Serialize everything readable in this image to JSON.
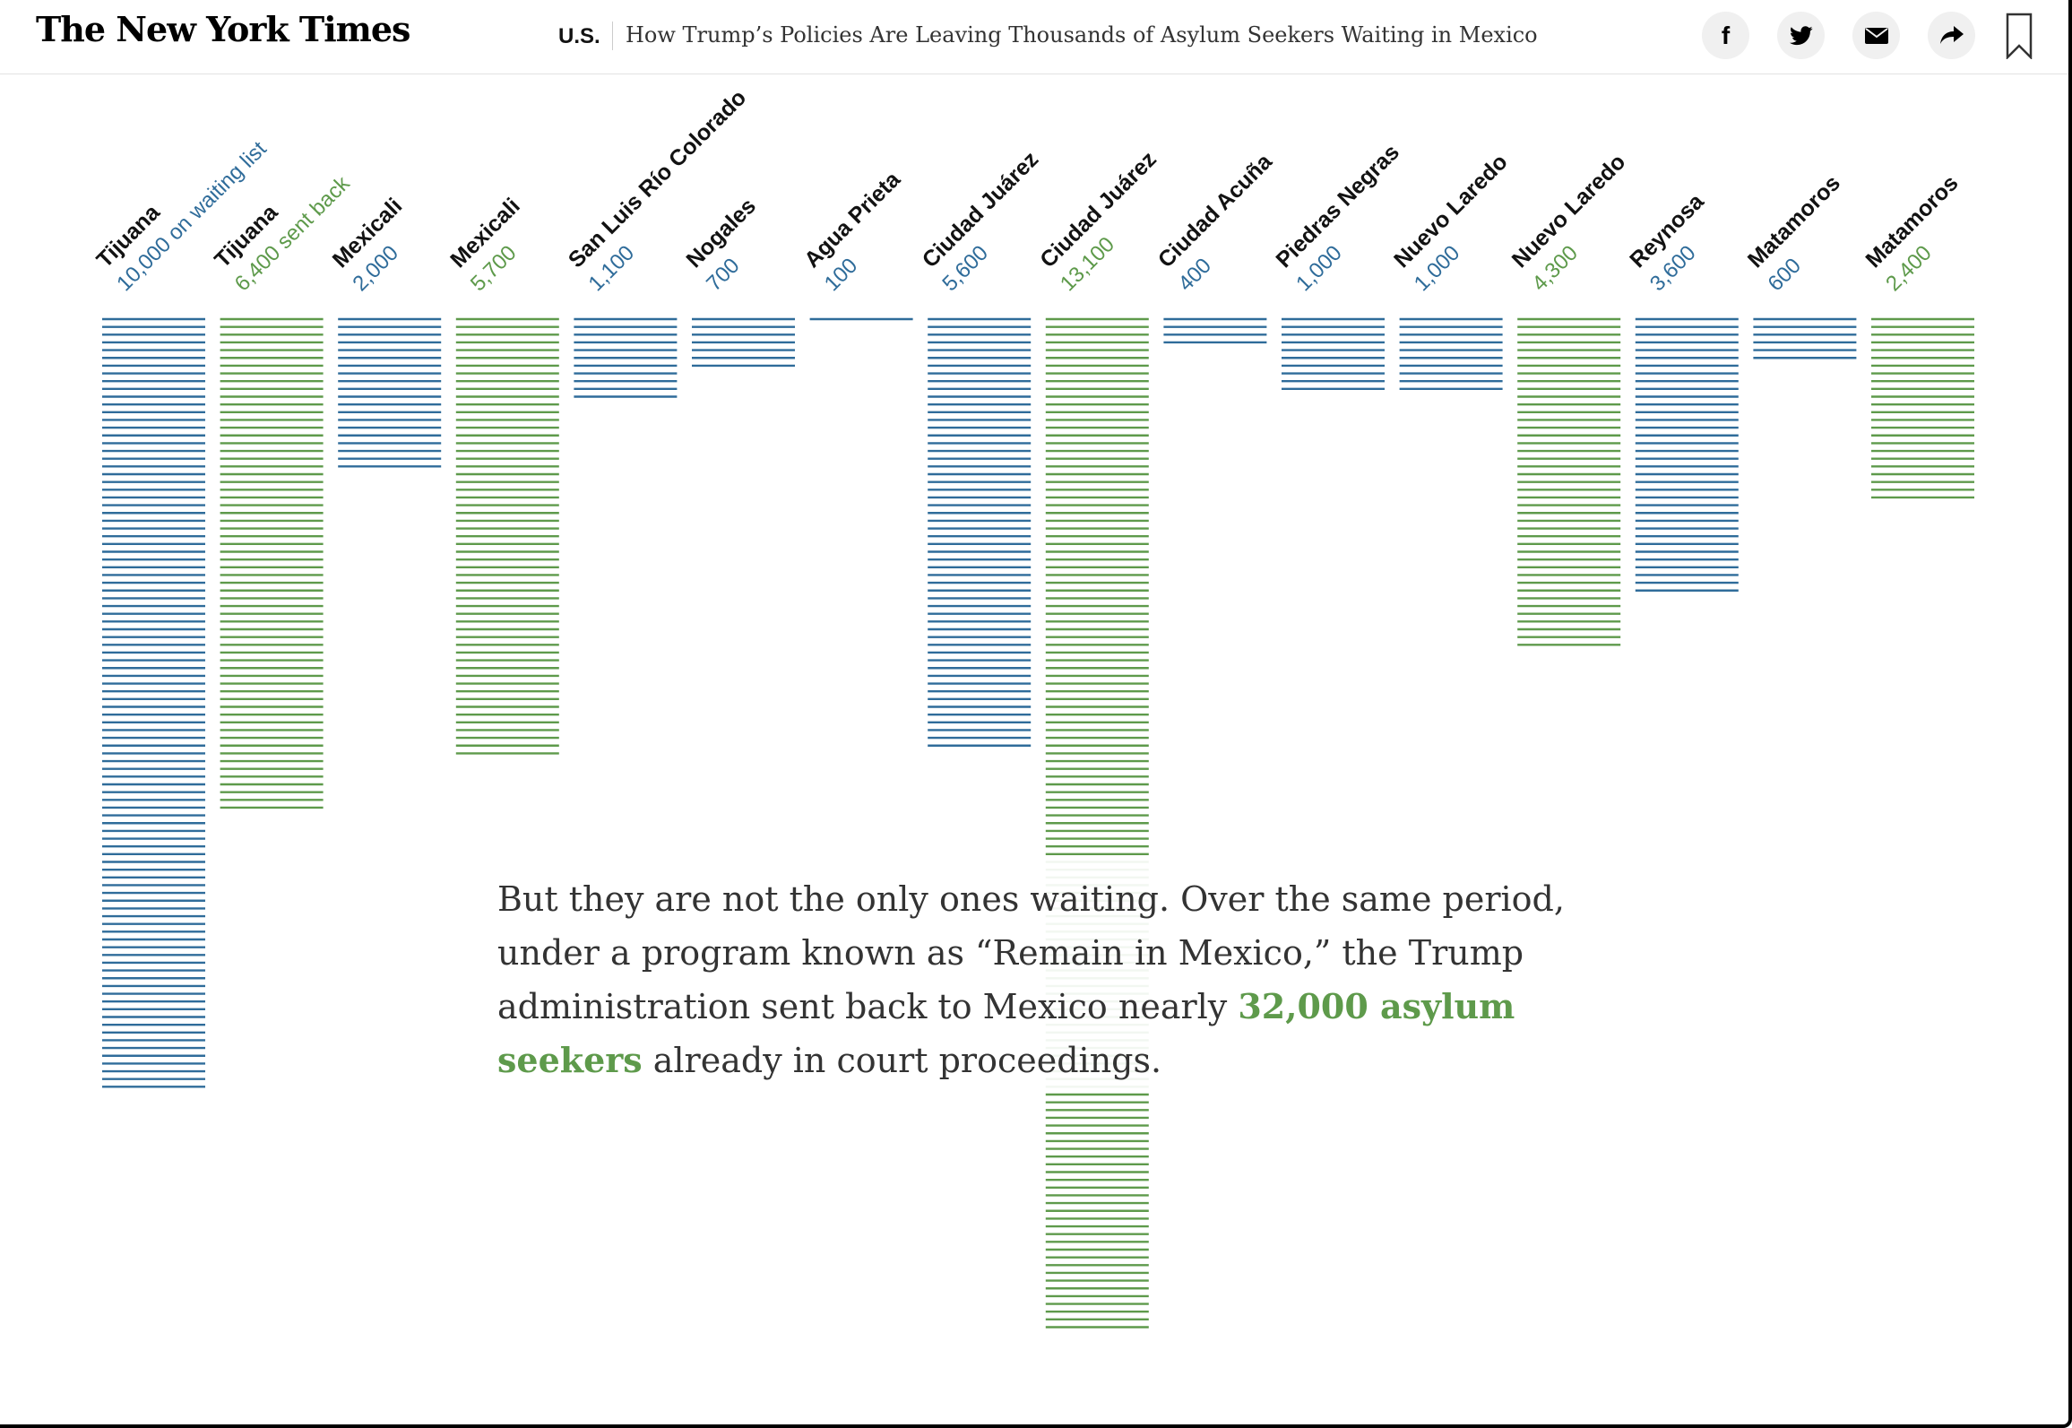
{
  "header": {
    "logo": "The New York Times",
    "section": "U.S.",
    "headline": "How Trump’s Policies Are Leaving Thousands of Asylum Seekers Waiting in Mexico",
    "share_buttons": [
      {
        "icon": "facebook-icon"
      },
      {
        "icon": "twitter-icon"
      },
      {
        "icon": "email-icon"
      },
      {
        "icon": "share-icon"
      }
    ],
    "bookmark_icon": "bookmark-icon"
  },
  "colors": {
    "waiting_list": "#2f6c9a",
    "sent_back": "#5e9a4b",
    "label": "#121212"
  },
  "chart_data": {
    "type": "bar",
    "categories": [
      "Tijuana",
      "Tijuana",
      "Mexicali",
      "Mexicali",
      "San Luis Río Colorado",
      "Nogales",
      "Agua Prieta",
      "Ciudad Juárez",
      "Ciudad Juárez",
      "Ciudad Acuña",
      "Piedras Negras",
      "Nuevo Laredo",
      "Nuevo Laredo",
      "Reynosa",
      "Matamoros",
      "Matamoros"
    ],
    "values": [
      10000,
      6400,
      2000,
      5700,
      1100,
      700,
      100,
      5600,
      13100,
      400,
      1000,
      1000,
      4300,
      3600,
      600,
      2400
    ],
    "value_labels": [
      "10,000 on waiting list",
      "6,400 sent back",
      "2,000",
      "5,700",
      "1,100",
      "700",
      "100",
      "5,600",
      "13,100",
      "400",
      "1,000",
      "1,000",
      "4,300",
      "3,600",
      "600",
      "2,400"
    ],
    "series_of": [
      "waiting_list",
      "sent_back",
      "waiting_list",
      "sent_back",
      "waiting_list",
      "waiting_list",
      "waiting_list",
      "waiting_list",
      "sent_back",
      "waiting_list",
      "waiting_list",
      "waiting_list",
      "sent_back",
      "waiting_list",
      "waiting_list",
      "sent_back"
    ],
    "unit_per_line": 100,
    "title": "",
    "xlabel": "",
    "ylabel": "",
    "legend": "none",
    "grid": false
  },
  "caption": {
    "text_before": "But they are not the only ones waiting. Over the same period, under a program known as “Remain in Mexico,” the Trump administration sent back to Mexico nearly ",
    "highlight": "32,000 asylum seekers",
    "text_after": " already in court proceedings."
  }
}
